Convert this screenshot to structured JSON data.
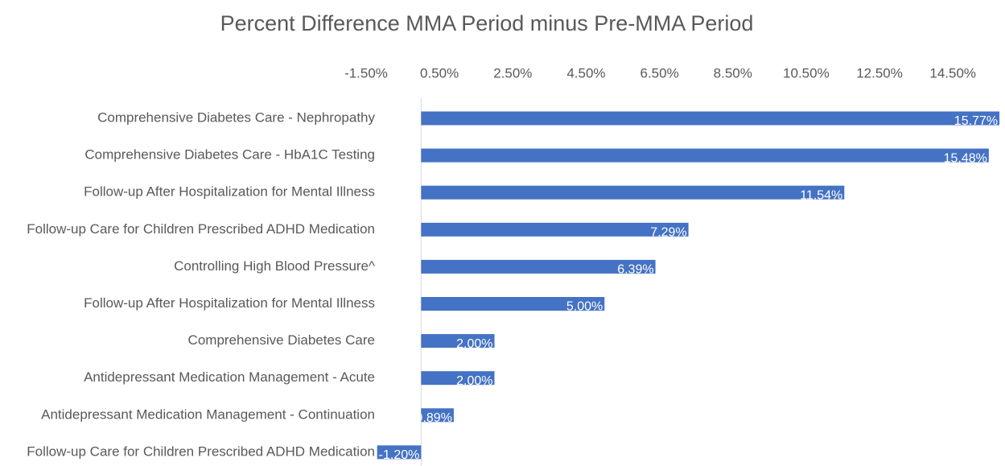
{
  "chart_data": {
    "type": "barh",
    "title": "Percent Difference MMA Period minus Pre-MMA Period",
    "categories": [
      "Comprehensive Diabetes Care - Nephropathy",
      "Comprehensive Diabetes Care - HbA1C Testing",
      "Follow-up After Hospitalization for Mental Illness",
      "Follow-up Care for Children Prescribed ADHD Medication",
      "Controlling High Blood Pressure^",
      "Follow-up After Hospitalization for Mental Illness",
      "Comprehensive Diabetes Care",
      "Antidepressant Medication Management - Acute",
      "Antidepressant Medication Management - Continuation",
      "Follow-up Care for Children Prescribed ADHD Medication"
    ],
    "values": [
      15.77,
      15.48,
      11.54,
      7.29,
      6.39,
      5.0,
      2.0,
      2.0,
      0.89,
      -1.2
    ],
    "value_labels": [
      "15.77%",
      "15.48%",
      "11.54%",
      "7.29%",
      "6.39%",
      "5.00%",
      "2.00%",
      "2.00%",
      "0.89%",
      "-1.20%"
    ],
    "color": "#4472c4",
    "xlim": [
      -1.5,
      15.9
    ],
    "xticks": [
      {
        "value": -1.5,
        "label": "-1.50%"
      },
      {
        "value": 0.5,
        "label": "0.50%"
      },
      {
        "value": 2.5,
        "label": "2.50%"
      },
      {
        "value": 4.5,
        "label": "4.50%"
      },
      {
        "value": 6.5,
        "label": "6.50%"
      },
      {
        "value": 8.5,
        "label": "8.50%"
      },
      {
        "value": 10.5,
        "label": "10.50%"
      },
      {
        "value": 12.5,
        "label": "12.50%"
      },
      {
        "value": 14.5,
        "label": "14.50%"
      }
    ]
  }
}
